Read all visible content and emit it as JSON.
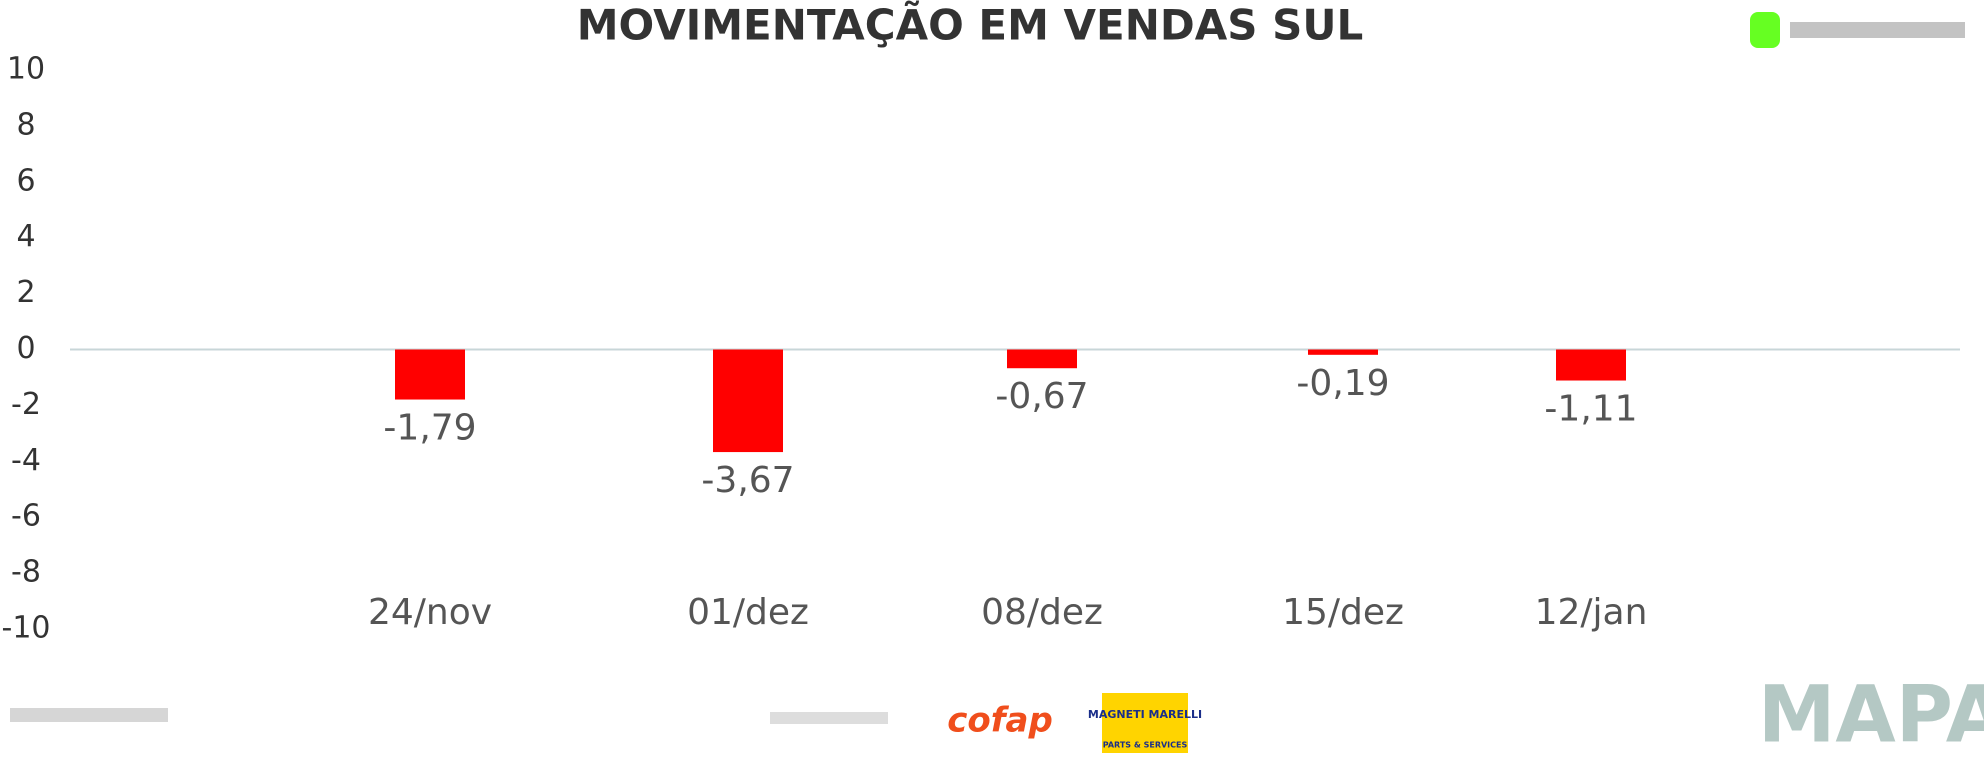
{
  "chart_data": {
    "type": "bar",
    "title": "MOVIMENTAÇÃO EM VENDAS SUL",
    "categories": [
      "24/nov",
      "01/dez",
      "08/dez",
      "15/dez",
      "12/jan"
    ],
    "values": [
      -1.79,
      -3.67,
      -0.67,
      -0.19,
      -1.11
    ],
    "value_labels": [
      "-1,79",
      "-3,67",
      "-0,67",
      "-0,19",
      "-1,11"
    ],
    "color": "#ff0000",
    "ylim": [
      -10,
      10
    ],
    "yticks": [
      -10,
      -8,
      -6,
      -4,
      -2,
      0,
      2,
      4,
      6,
      8,
      10
    ]
  },
  "footer": {
    "sponsors": [
      "cofap",
      "MAGNETI MARELLI",
      "PARTS & SERVICES"
    ],
    "brand": "MAPA"
  }
}
